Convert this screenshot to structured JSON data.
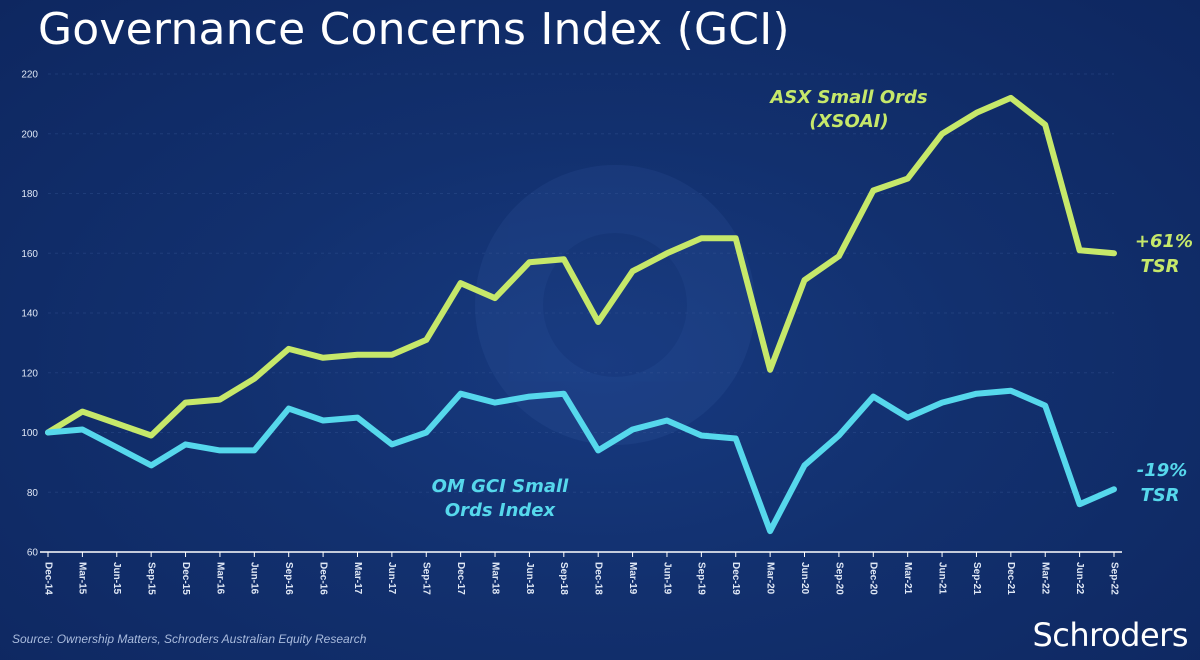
{
  "title": "Governance Concerns Index (GCI)",
  "source": "Source: Ownership Matters, Schroders Australian Equity Research",
  "brand": "Schroders",
  "colors": {
    "background": "#12306e",
    "xsoai": "#c6e86a",
    "gci": "#56d8ec",
    "text": "#ffffff"
  },
  "annotations": {
    "xsoai_label_line1": "ASX Small Ords",
    "xsoai_label_line2": "(XSOAI)",
    "gci_label_line1": "OM GCI Small",
    "gci_label_line2": "Ords Index",
    "xsoai_tsr_line1": "+61%",
    "xsoai_tsr_line2": "TSR",
    "gci_tsr_line1": "-19%",
    "gci_tsr_line2": "TSR"
  },
  "chart_data": {
    "type": "line",
    "title": "Governance Concerns Index (GCI)",
    "xlabel": "",
    "ylabel": "",
    "ylim": [
      60,
      220
    ],
    "yticks": [
      60,
      80,
      100,
      120,
      140,
      160,
      180,
      200,
      220
    ],
    "grid": false,
    "categories": [
      "Dec-14",
      "Mar-15",
      "Jun-15",
      "Sep-15",
      "Dec-15",
      "Mar-16",
      "Jun-16",
      "Sep-16",
      "Dec-16",
      "Mar-17",
      "Jun-17",
      "Sep-17",
      "Dec-17",
      "Mar-18",
      "Jun-18",
      "Sep-18",
      "Dec-18",
      "Mar-19",
      "Jun-19",
      "Sep-19",
      "Dec-19",
      "Mar-20",
      "Jun-20",
      "Sep-20",
      "Dec-20",
      "Mar-21",
      "Jun-21",
      "Sep-21",
      "Dec-21",
      "Mar-22",
      "Jun-22",
      "Sep-22"
    ],
    "series": [
      {
        "name": "ASX Small Ords (XSOAI)",
        "color": "#c6e86a",
        "values": [
          100,
          107,
          103,
          99,
          110,
          111,
          118,
          128,
          125,
          126,
          126,
          131,
          150,
          145,
          157,
          158,
          137,
          154,
          160,
          165,
          165,
          121,
          151,
          159,
          181,
          185,
          200,
          207,
          212,
          203,
          161,
          160
        ]
      },
      {
        "name": "OM GCI Small Ords Index",
        "color": "#56d8ec",
        "values": [
          100,
          101,
          95,
          89,
          96,
          94,
          94,
          108,
          104,
          105,
          96,
          100,
          113,
          110,
          112,
          113,
          94,
          101,
          104,
          99,
          98,
          67,
          89,
          99,
          112,
          105,
          110,
          113,
          114,
          109,
          76,
          81
        ]
      }
    ]
  }
}
